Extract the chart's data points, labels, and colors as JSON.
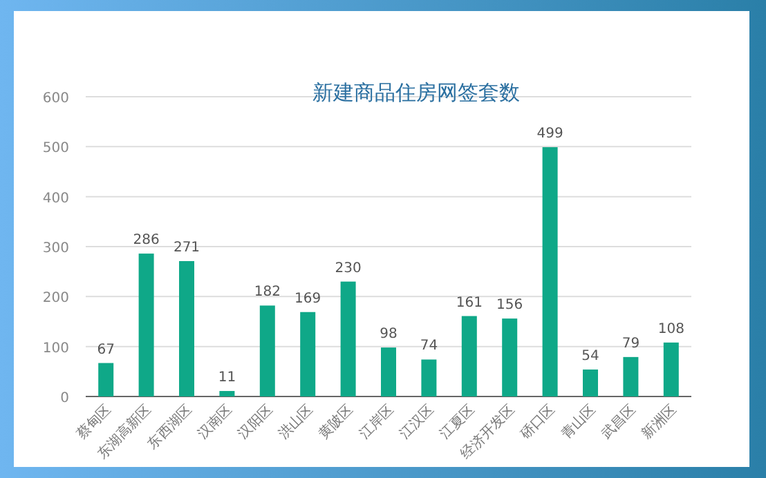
{
  "chart_data": {
    "type": "bar",
    "title": "新建商品住房网签套数",
    "categories": [
      "蔡甸区",
      "东湖高新区",
      "东西湖区",
      "汉南区",
      "汉阳区",
      "洪山区",
      "黄陂区",
      "江岸区",
      "江汉区",
      "江夏区",
      "经济开发区",
      "硚口区",
      "青山区",
      "武昌区",
      "新洲区"
    ],
    "values": [
      67,
      286,
      271,
      11,
      182,
      169,
      230,
      98,
      74,
      161,
      156,
      499,
      54,
      79,
      108
    ],
    "color": "#0fa888",
    "ylim": [
      0,
      600
    ],
    "yticks": [
      0,
      100,
      200,
      300,
      400,
      500,
      600
    ],
    "grid": "y",
    "data_labels": true
  }
}
